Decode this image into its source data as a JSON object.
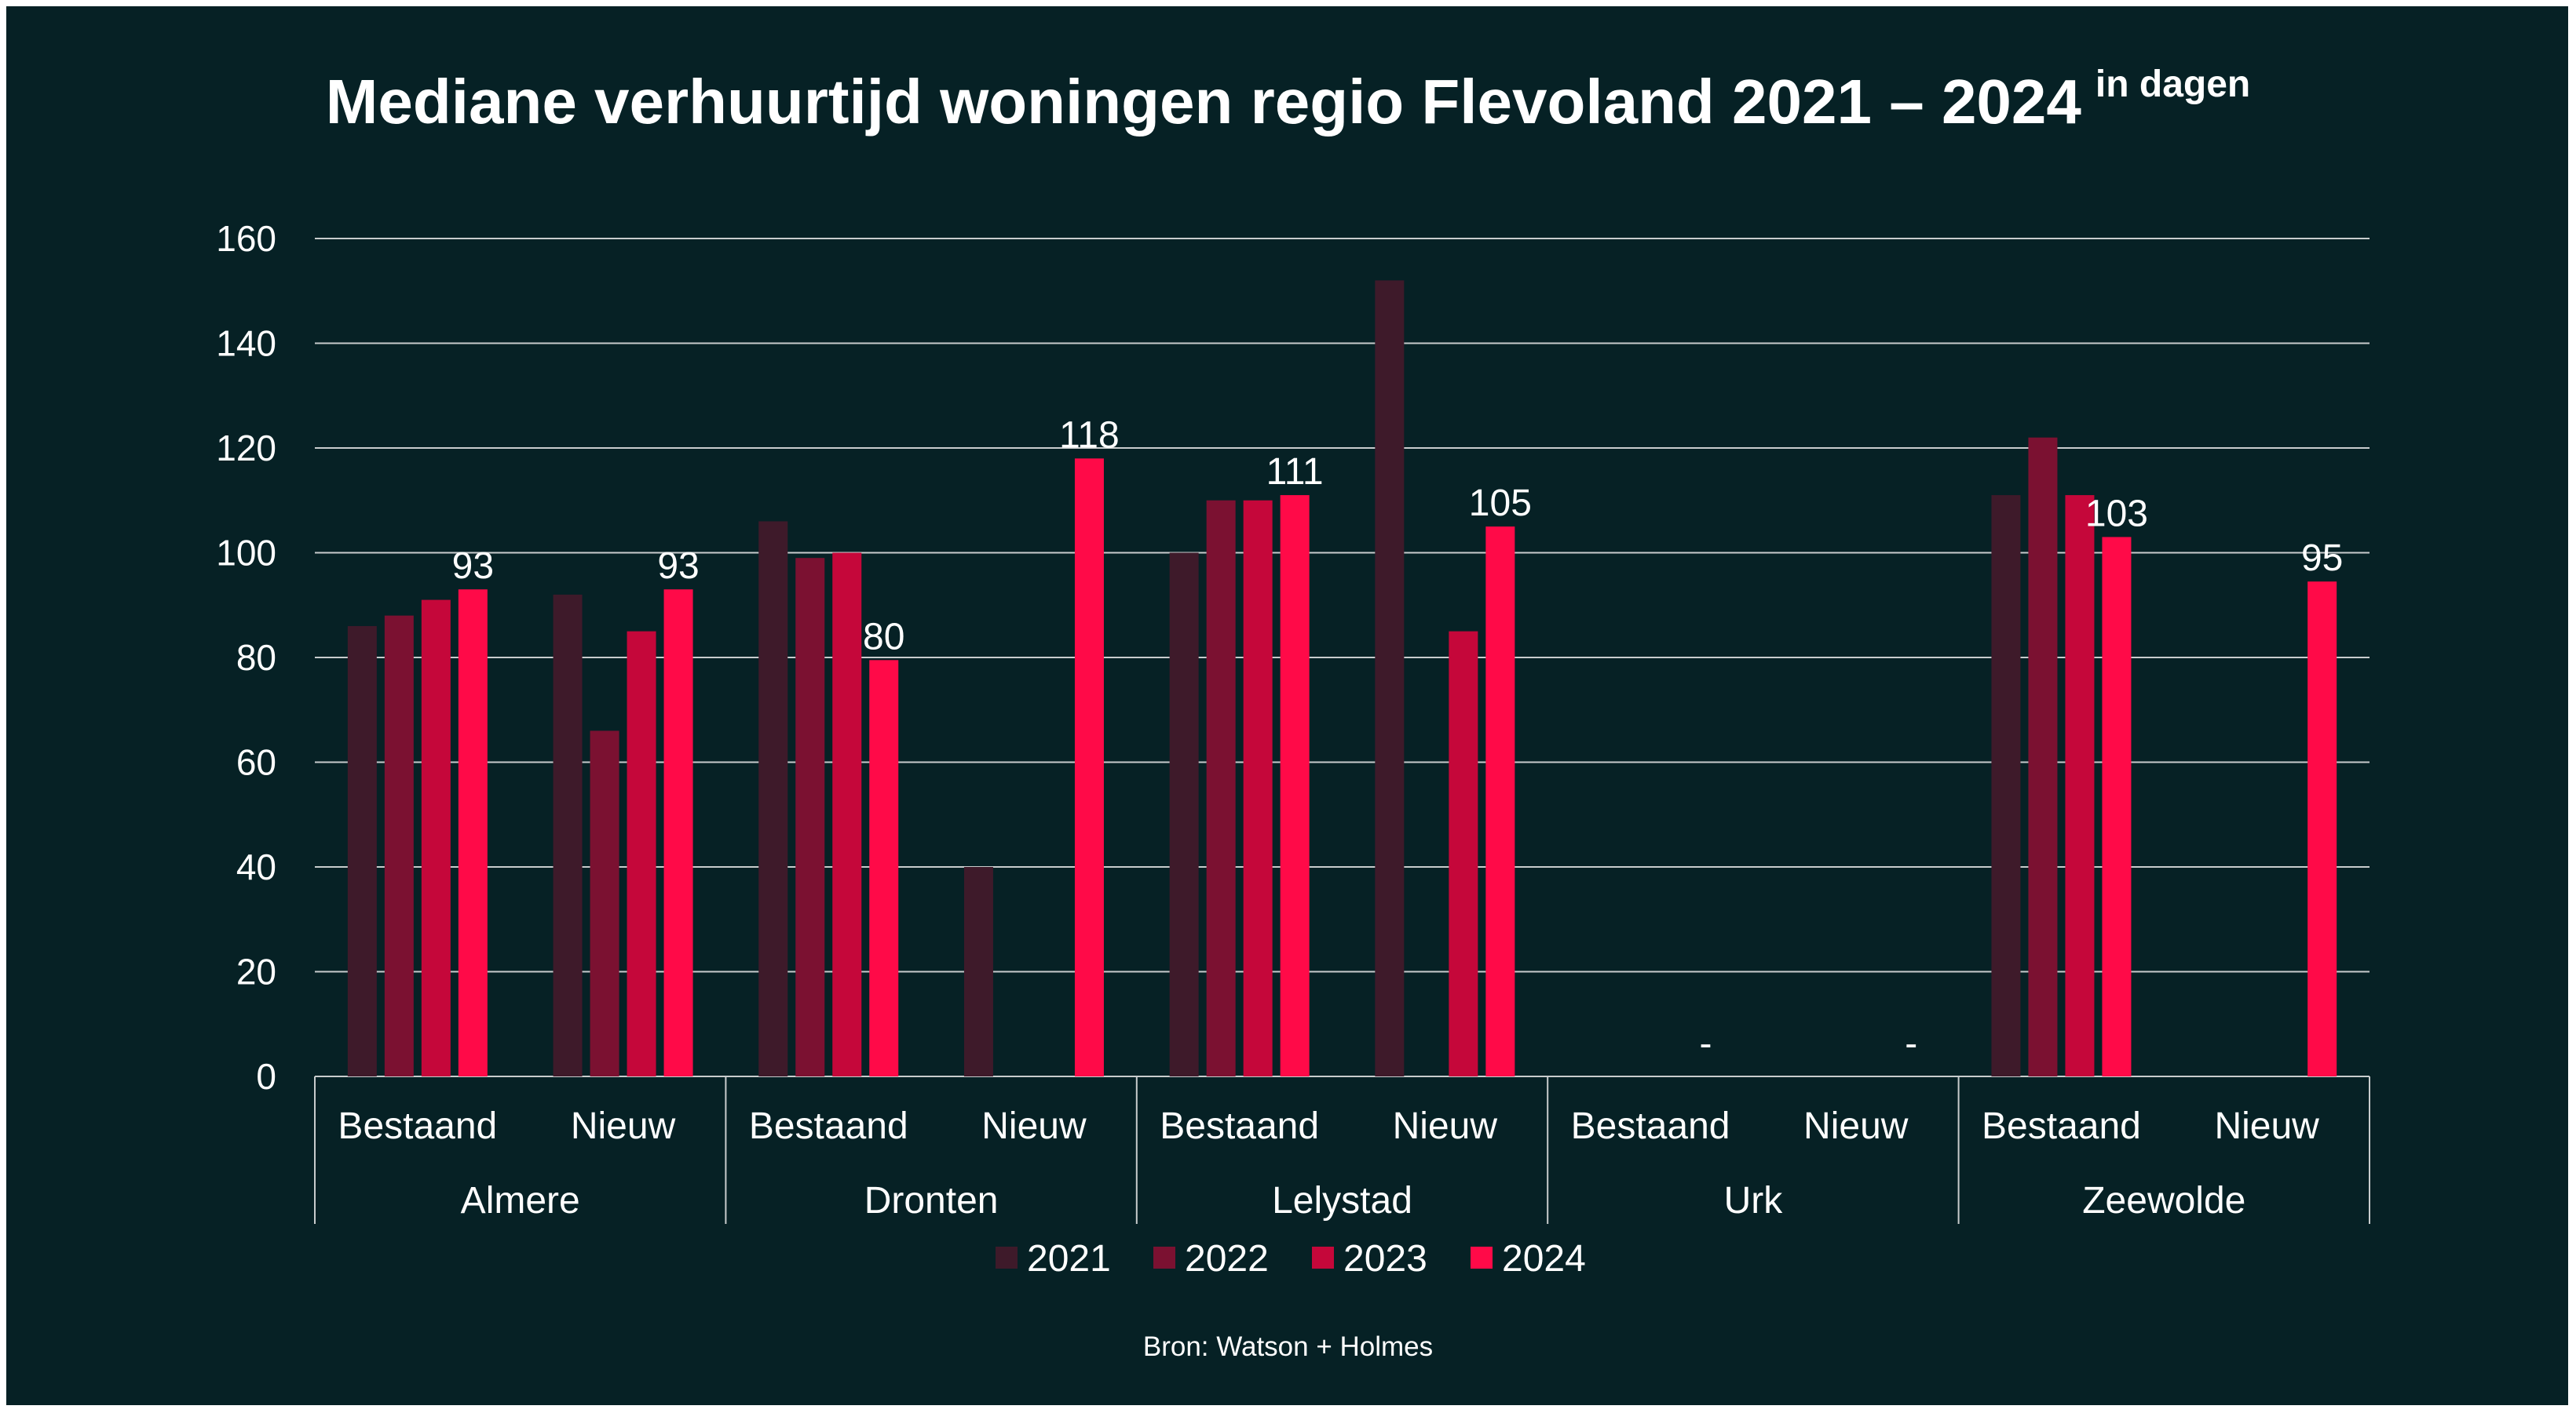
{
  "title": "Mediane verhuurtijd woningen regio Flevoland 2021 – 2024",
  "title_suffix": "in dagen",
  "source": "Bron: Watson + Holmes",
  "colors": {
    "background": "#062125",
    "2021": "#3e1a2a",
    "2022": "#7b1131",
    "2023": "#c5073a",
    "2024": "#ff0a48",
    "text": "#ffffff",
    "grid": "#c8cccd"
  },
  "chart_data": {
    "type": "bar",
    "title": "Mediane verhuurtijd woningen regio Flevoland 2021 – 2024",
    "ylim": [
      0,
      160
    ],
    "yticks": [
      0,
      20,
      40,
      60,
      80,
      100,
      120,
      140,
      160
    ],
    "grid": true,
    "legend_position": "bottom",
    "groups": [
      {
        "name": "Almere",
        "subcategories": [
          "Bestaand",
          "Nieuw"
        ]
      },
      {
        "name": "Dronten",
        "subcategories": [
          "Bestaand",
          "Nieuw"
        ]
      },
      {
        "name": "Lelystad",
        "subcategories": [
          "Bestaand",
          "Nieuw"
        ]
      },
      {
        "name": "Urk",
        "subcategories": [
          "Bestaand",
          "Nieuw"
        ]
      },
      {
        "name": "Zeewolde",
        "subcategories": [
          "Bestaand",
          "Nieuw"
        ]
      }
    ],
    "categories": [
      "Almere Bestaand",
      "Almere Nieuw",
      "Dronten Bestaand",
      "Dronten Nieuw",
      "Lelystad Bestaand",
      "Lelystad Nieuw",
      "Urk Bestaand",
      "Urk Nieuw",
      "Zeewolde Bestaand",
      "Zeewolde Nieuw"
    ],
    "series": [
      {
        "name": "2021",
        "values": [
          86,
          92,
          106,
          40,
          100,
          152,
          null,
          null,
          111,
          null
        ]
      },
      {
        "name": "2022",
        "values": [
          88,
          66,
          99,
          null,
          110,
          null,
          null,
          null,
          122,
          null
        ]
      },
      {
        "name": "2023",
        "values": [
          91,
          85,
          100,
          null,
          110,
          85,
          null,
          null,
          111,
          null
        ]
      },
      {
        "name": "2024",
        "values": [
          93,
          93,
          79.5,
          118,
          111,
          105,
          null,
          null,
          103,
          94.5
        ]
      }
    ],
    "data_labels_2024": [
      "93",
      "93",
      "80",
      "118",
      "111",
      "105",
      "-",
      "-",
      "103",
      "95"
    ]
  }
}
